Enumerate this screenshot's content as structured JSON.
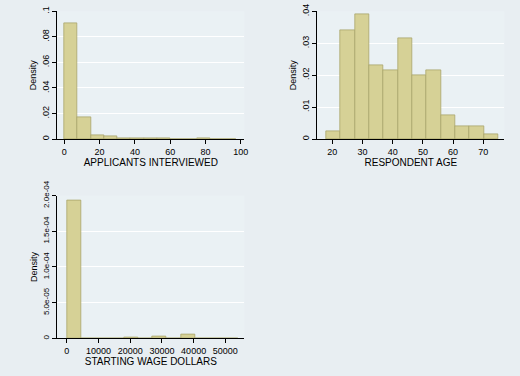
{
  "chart_data": [
    {
      "type": "histogram",
      "xlabel": "APPLICANTS INTERVIEWED",
      "ylabel": "Density",
      "bins": [
        0,
        7.5,
        15,
        22.5,
        30,
        37.5,
        45,
        52.5,
        60,
        67.5,
        75,
        82.5,
        90,
        97.5
      ],
      "values": [
        0.091,
        0.017,
        0.003,
        0.002,
        0.001,
        0.0008,
        0.0004,
        0.0003,
        0.0002,
        0.0001,
        0.0003,
        0,
        0.0002
      ],
      "color": "#d6d196",
      "xlim": [
        -4,
        102
      ],
      "ylim": [
        0,
        0.1
      ],
      "xticks": [
        0,
        20,
        40,
        60,
        80,
        100
      ],
      "yticks": [
        0,
        {
          "value": 0.02,
          "label": ".02"
        },
        {
          "value": 0.04,
          "label": ".04"
        },
        {
          "value": 0.06,
          "label": ".06"
        },
        {
          "value": 0.08,
          "label": ".08"
        },
        {
          "value": 0.1,
          "label": ".1"
        }
      ],
      "grid": true
    },
    {
      "type": "histogram",
      "xlabel": "RESPONDENT AGE",
      "ylabel": "Density",
      "bins": [
        18,
        22.75,
        27.5,
        32.25,
        37,
        41.75,
        46.5,
        51.25,
        56,
        60.75,
        65.5,
        70.25,
        75
      ],
      "values": [
        0.0025,
        0.034,
        0.039,
        0.023,
        0.0215,
        0.0315,
        0.02,
        0.0215,
        0.0075,
        0.004,
        0.004,
        0.0015
      ],
      "color": "#d6d196",
      "xlim": [
        15,
        77
      ],
      "ylim": [
        0,
        0.04
      ],
      "xticks": [
        20,
        30,
        40,
        50,
        60,
        70
      ],
      "yticks": [
        0,
        {
          "value": 0.01,
          "label": ".01"
        },
        {
          "value": 0.02,
          "label": ".02"
        },
        {
          "value": 0.03,
          "label": ".03"
        },
        {
          "value": 0.04,
          "label": ".04"
        }
      ],
      "grid": true
    },
    {
      "type": "histogram",
      "xlabel": "STARTING WAGE DOLLARS",
      "ylabel": "Density",
      "bins": [
        0,
        4500,
        9000,
        13500,
        18000,
        22500,
        27000,
        31500,
        36000,
        40500,
        45000,
        49500,
        54000
      ],
      "values": [
        0.000193,
        0,
        0,
        0,
        1e-06,
        0,
        3e-06,
        0,
        5e-06,
        0,
        0,
        0
      ],
      "color": "#d6d196",
      "xlim": [
        -3000,
        56000
      ],
      "ylim": [
        0,
        0.0002
      ],
      "xticks": [
        0,
        10000,
        20000,
        30000,
        40000,
        50000
      ],
      "yticks": [
        0,
        {
          "value": 5e-05,
          "label": "5.0e-05"
        },
        {
          "value": 0.0001,
          "label": "1.0e-04"
        },
        {
          "value": 0.00015,
          "label": "1.5e-04"
        },
        {
          "value": 0.0002,
          "label": "2.0e-04"
        }
      ],
      "grid": true
    }
  ]
}
